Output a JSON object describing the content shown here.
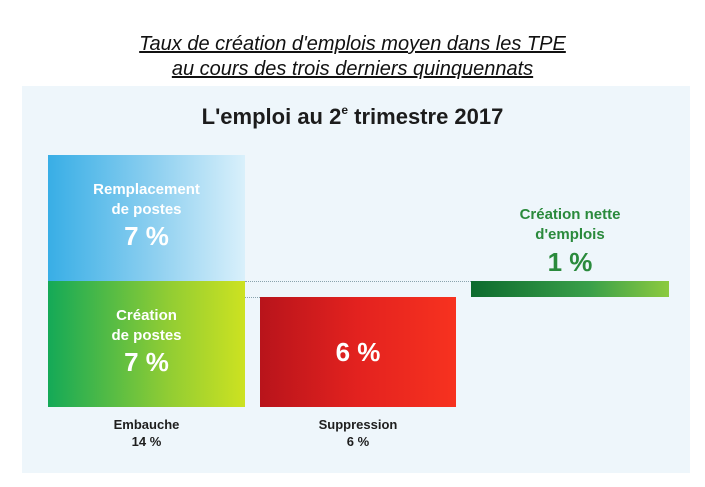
{
  "title_line1": "Taux de création d'emplois moyen dans les TPE",
  "title_line2": "au cours des trois derniers quinquennats",
  "subtitle_main": "L'emploi au 2",
  "subtitle_sup": "e",
  "subtitle_end": " trimestre 2017",
  "chart_data": {
    "type": "bar",
    "title": "L'emploi au 2e trimestre 2017",
    "categories": [
      "Embauche",
      "Suppression",
      "Création nette d'emplois"
    ],
    "unit": "%",
    "components": [
      {
        "category": "Embauche",
        "label_line1": "Remplacement",
        "label_line2": "de postes",
        "value": 7,
        "display": "7 %"
      },
      {
        "category": "Embauche",
        "label_line1": "Création",
        "label_line2": "de postes",
        "value": 7,
        "display": "7 %"
      },
      {
        "category": "Suppression",
        "value": 6,
        "display": "6 %"
      },
      {
        "category": "Création nette d'emplois",
        "label_line1": "Création nette",
        "label_line2": "d'emplois",
        "value": 1,
        "display": "1 %"
      }
    ],
    "totals": [
      {
        "name": "Embauche",
        "value": 14,
        "display": "14 %"
      },
      {
        "name": "Suppression",
        "value": 6,
        "display": "6 %"
      }
    ],
    "colors": {
      "replacement": "#38aee6",
      "creation": "#14a957",
      "suppression": "#e3221f",
      "net": "#0d6b2e",
      "background": "#eef6fb"
    }
  }
}
